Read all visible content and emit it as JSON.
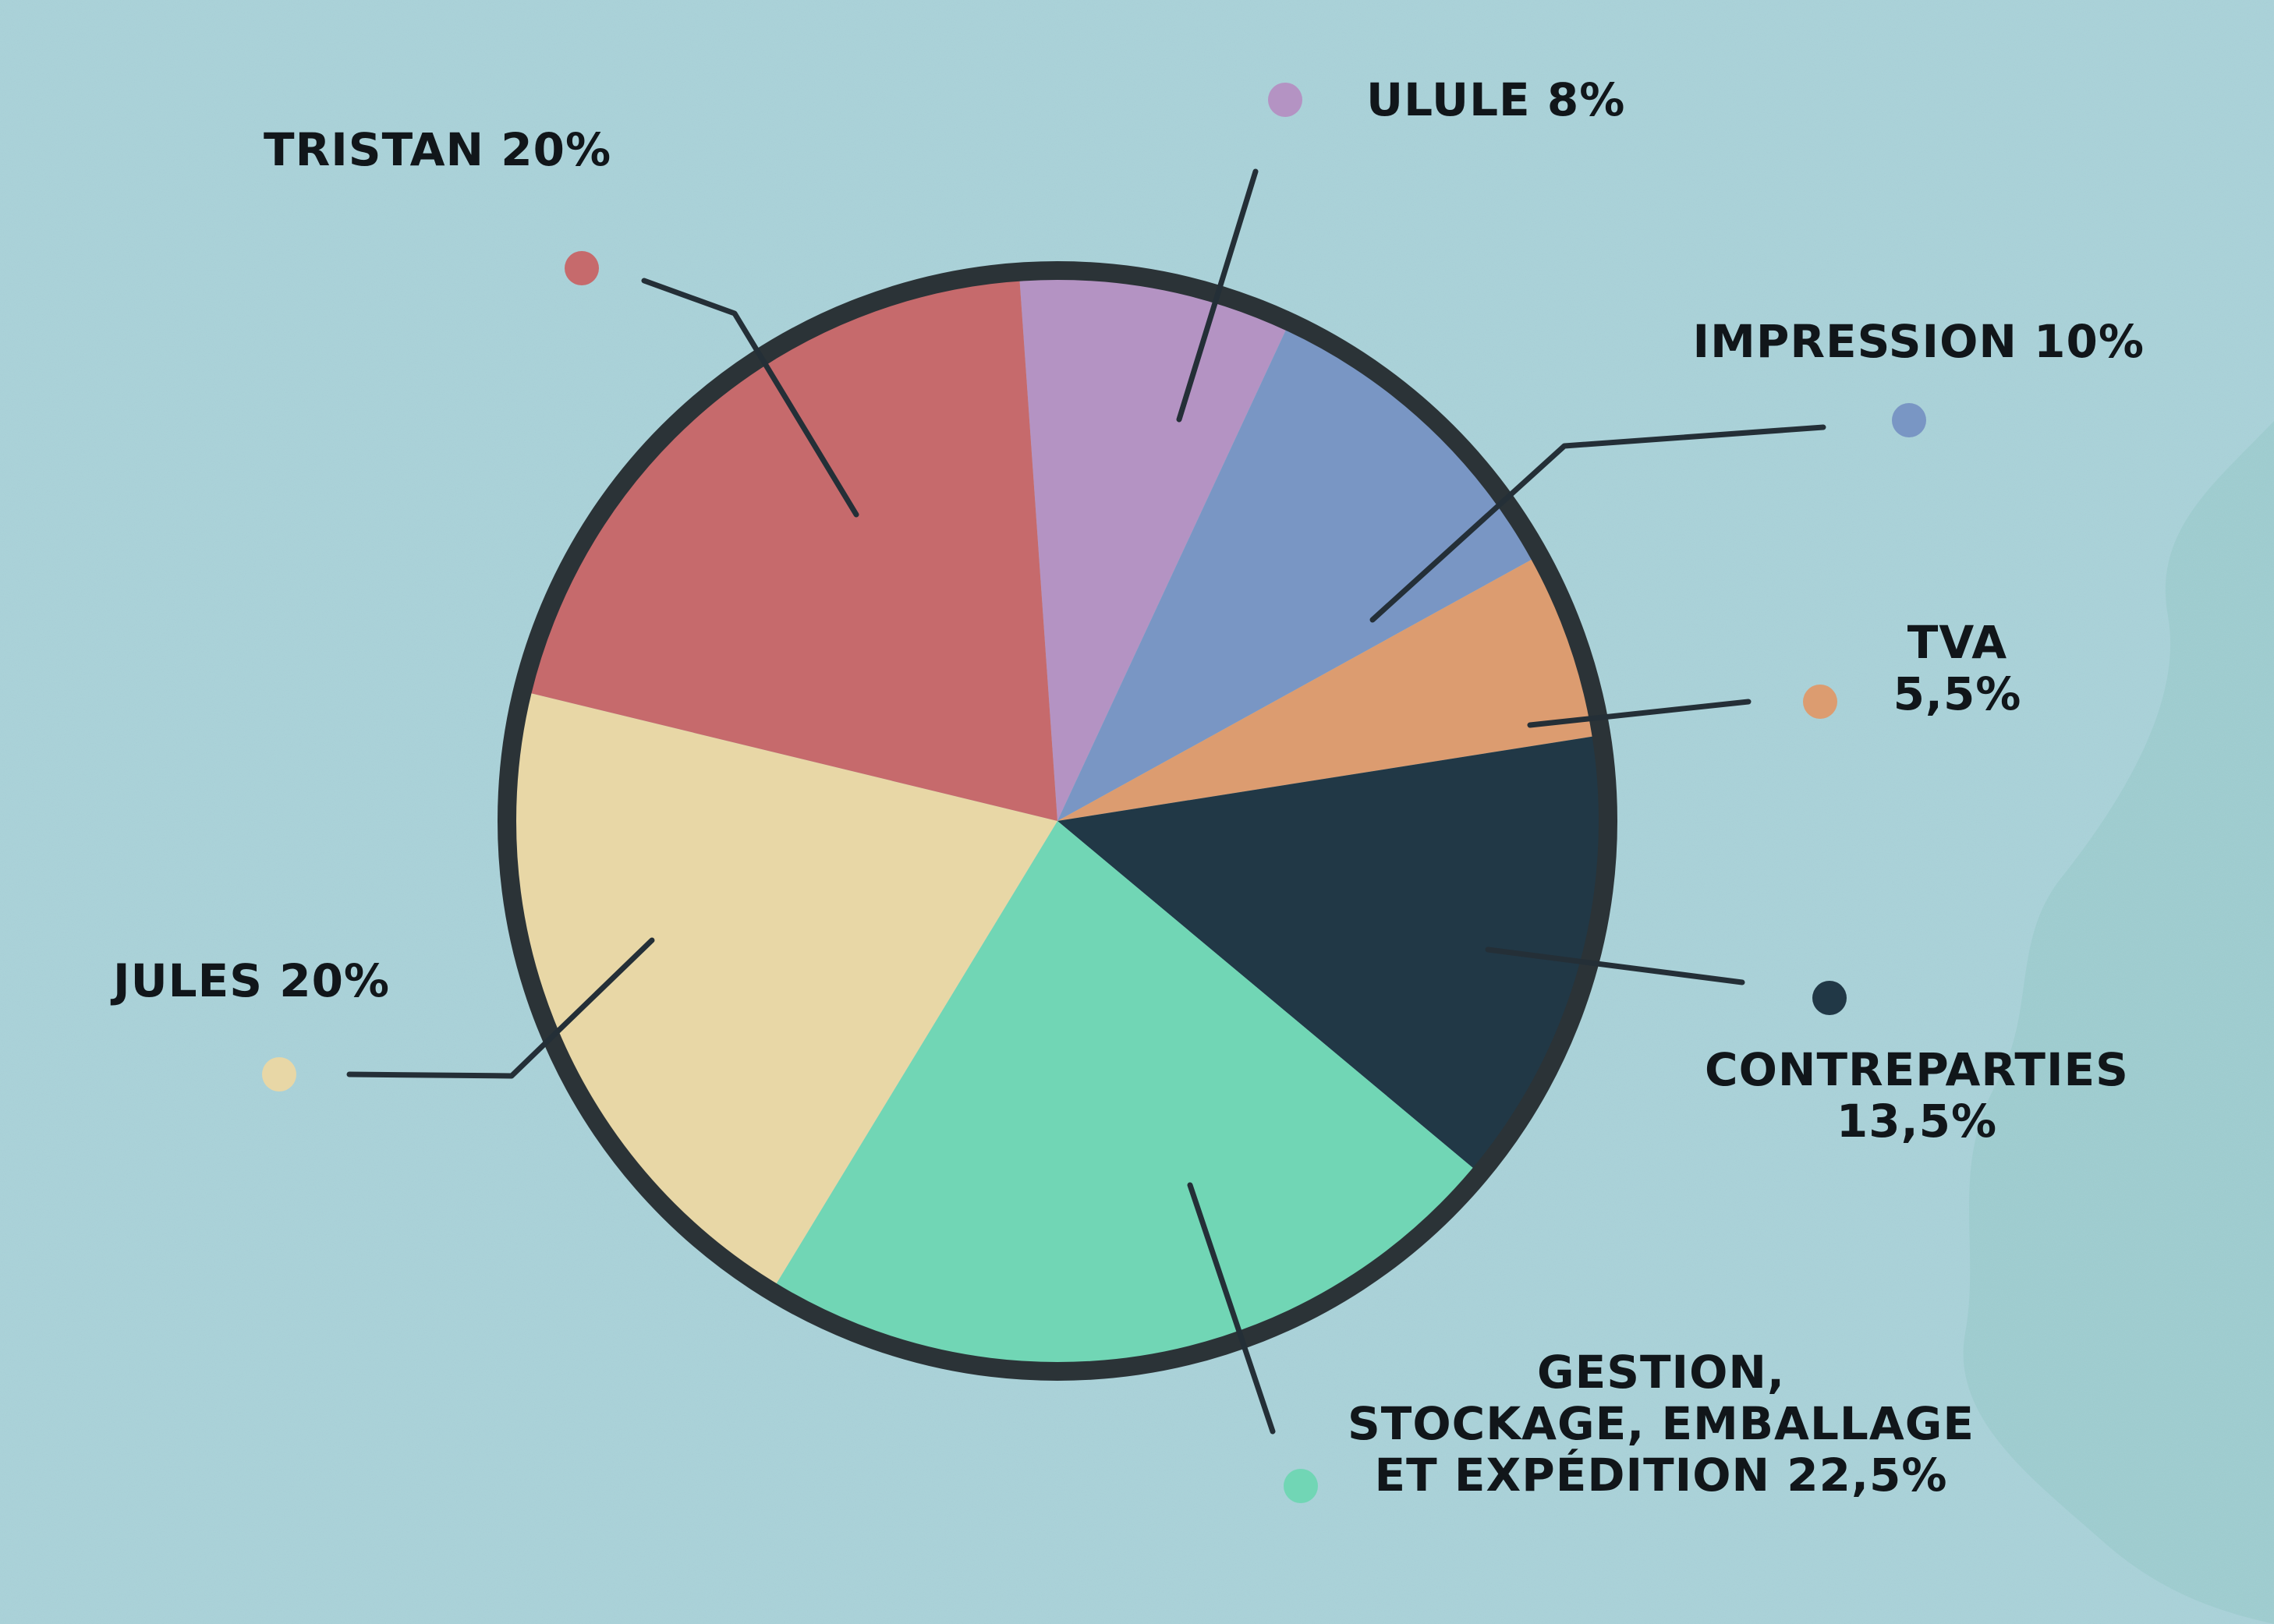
{
  "chart_data": {
    "type": "pie",
    "title": "",
    "slices": [
      {
        "name": "Ulule",
        "value": 8,
        "label_lines": [
          "ULULE 8%"
        ],
        "color": "#b493c3"
      },
      {
        "name": "Impression",
        "value": 10,
        "label_lines": [
          "IMPRESSION 10%"
        ],
        "color": "#7996c4"
      },
      {
        "name": "TVA",
        "value": 5.5,
        "label_lines": [
          "TVA",
          "5,5%"
        ],
        "color": "#dc9c70"
      },
      {
        "name": "Contreparties",
        "value": 13.5,
        "label_lines": [
          "CONTREPARTIES",
          "13,5%"
        ],
        "color": "#213846"
      },
      {
        "name": "Gestion, stockage, emballage et expédition",
        "value": 22.5,
        "label_lines": [
          "GESTION,",
          "STOCKAGE, EMBALLAGE",
          "ET EXPÉDITION 22,5%"
        ],
        "color": "#71d6b5"
      },
      {
        "name": "Jules",
        "value": 20,
        "label_lines": [
          "JULES 20%"
        ],
        "color": "#e8d7a6"
      },
      {
        "name": "Tristan",
        "value": 20,
        "label_lines": [
          "TRISTAN 20%"
        ],
        "color": "#c66a6c"
      }
    ],
    "legend": "none",
    "outline_color": "#2b3337",
    "background_color": "#a9d2d9"
  }
}
